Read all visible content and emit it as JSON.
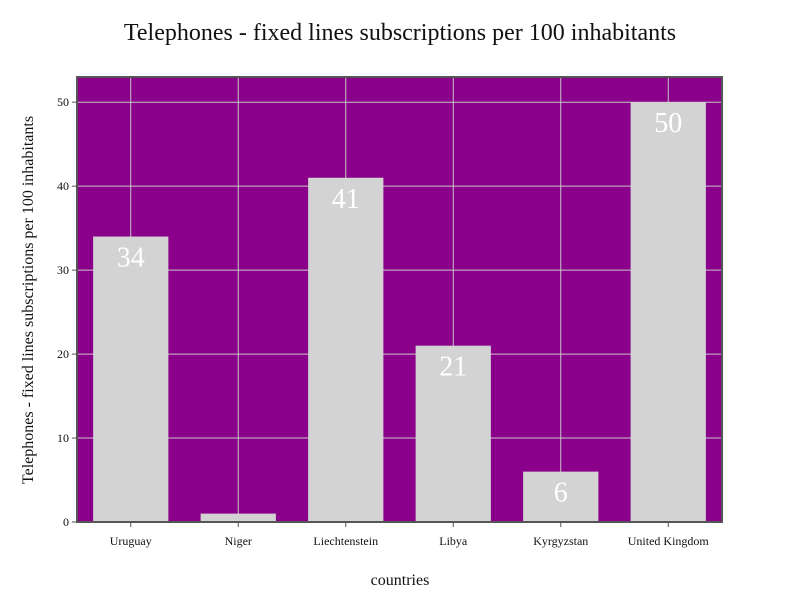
{
  "chart_data": {
    "type": "bar",
    "title": "Telephones - fixed lines subscriptions per 100 inhabitants",
    "xlabel": "countries",
    "ylabel": "Telephones - fixed lines subscriptions per 100 inhabitants",
    "categories": [
      "Uruguay",
      "Niger",
      "Liechtenstein",
      "Libya",
      "Kyrgyzstan",
      "United Kingdom"
    ],
    "values": [
      34,
      1,
      41,
      21,
      6,
      50
    ],
    "data_labels": [
      "34",
      "",
      "41",
      "21",
      "6",
      "50"
    ],
    "ylim": [
      0,
      53
    ],
    "yticks": [
      0,
      10,
      20,
      30,
      40,
      50
    ],
    "grid": true,
    "legend": "none",
    "colors": {
      "plot_background": "#8b008b",
      "bar": "#d3d3d3",
      "grid": "#c8c8c8",
      "frame": "#555555",
      "bar_label": "#ffffff"
    }
  }
}
